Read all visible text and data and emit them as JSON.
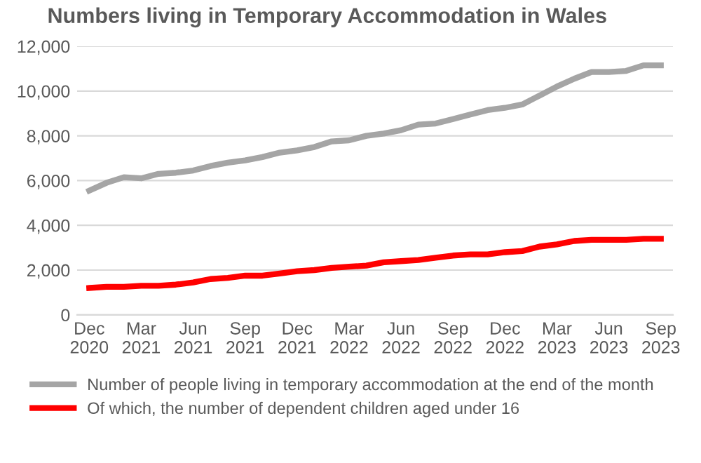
{
  "chart_data": {
    "type": "line",
    "title": "Numbers living in Temporary Accommodation in Wales",
    "categories": [
      "Dec\n2020",
      null,
      null,
      "Mar\n2021",
      null,
      null,
      "Jun\n2021",
      null,
      null,
      "Sep\n2021",
      null,
      null,
      "Dec\n2021",
      null,
      null,
      "Mar\n2022",
      null,
      null,
      "Jun\n2022",
      null,
      null,
      "Sep\n2022",
      null,
      null,
      "Dec\n2022",
      null,
      null,
      "Mar\n2023",
      null,
      null,
      "Jun\n2023",
      null,
      null,
      "Sep\n2023"
    ],
    "series": [
      {
        "name": "Number of people living in temporary accommodation at the end of the month",
        "color": "#a5a5a5",
        "values": [
          5550,
          5900,
          6150,
          6100,
          6300,
          6350,
          6450,
          6650,
          6800,
          6900,
          7050,
          7250,
          7350,
          7500,
          7750,
          7800,
          8000,
          8100,
          8250,
          8500,
          8550,
          8750,
          8950,
          9150,
          9250,
          9400,
          9800,
          10200,
          10550,
          10850,
          10850,
          10900,
          11150,
          11150
        ]
      },
      {
        "name": "Of which, the number of dependent children aged under 16",
        "color": "#ff0000",
        "values": [
          1200,
          1250,
          1250,
          1300,
          1300,
          1350,
          1450,
          1600,
          1650,
          1750,
          1750,
          1850,
          1950,
          2000,
          2100,
          2150,
          2200,
          2350,
          2400,
          2450,
          2550,
          2650,
          2700,
          2700,
          2800,
          2850,
          3050,
          3150,
          3300,
          3350,
          3350,
          3350,
          3400,
          3400
        ]
      }
    ],
    "ylim": [
      0,
      12000
    ],
    "yticks": [
      {
        "value": 0,
        "label": "0"
      },
      {
        "value": 2000,
        "label": "2,000"
      },
      {
        "value": 4000,
        "label": "4,000"
      },
      {
        "value": 6000,
        "label": "6,000"
      },
      {
        "value": 8000,
        "label": "8,000"
      },
      {
        "value": 10000,
        "label": "10,000"
      },
      {
        "value": 12000,
        "label": "12,000"
      }
    ],
    "grid": "y",
    "legend": "bottom",
    "marker": "none",
    "line_style": "solid"
  }
}
